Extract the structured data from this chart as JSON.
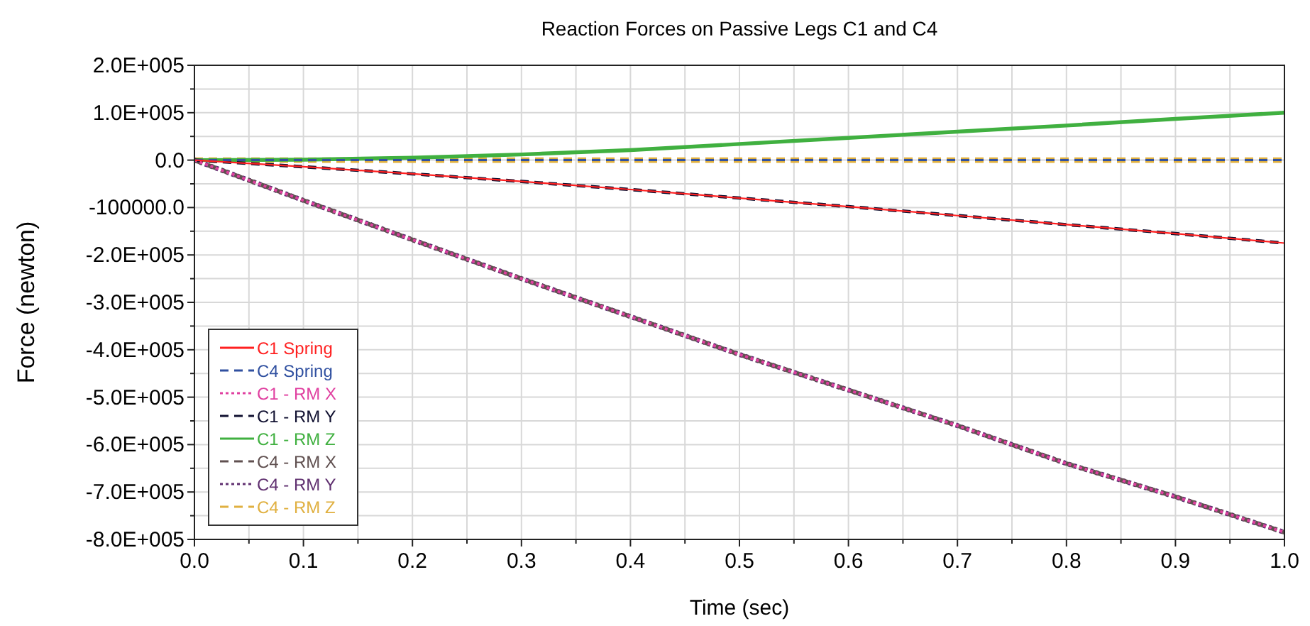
{
  "chart_data": {
    "type": "line",
    "title": "Reaction Forces on Passive Legs C1 and C4",
    "xlabel": "Time (sec)",
    "ylabel": "Force (newton)",
    "x": [
      0,
      0.1,
      0.2,
      0.3,
      0.4,
      0.5,
      0.6,
      0.7,
      0.8,
      0.9,
      1.0
    ],
    "series": [
      {
        "name": "C1 Spring",
        "color": "#ff2020",
        "line_style": "solid",
        "values": [
          0,
          -14000,
          -29000,
          -45000,
          -62000,
          -80000,
          -98000,
          -117000,
          -136000,
          -155000,
          -175000
        ]
      },
      {
        "name": "C4 Spring",
        "color": "#3050a0",
        "line_style": "dashed",
        "values": [
          0,
          0,
          0,
          0,
          0,
          0,
          0,
          0,
          0,
          0,
          0
        ]
      },
      {
        "name": "C1 - RM X",
        "color": "#e040a0",
        "line_style": "dotted",
        "values": [
          0,
          -85000,
          -168000,
          -250000,
          -330000,
          -410000,
          -485000,
          -560000,
          -640000,
          -710000,
          -785000
        ]
      },
      {
        "name": "C1 - RM Y",
        "color": "#101030",
        "line_style": "dashed",
        "values": [
          0,
          -14000,
          -29000,
          -45000,
          -62000,
          -80000,
          -98000,
          -117000,
          -136000,
          -155000,
          -175000
        ]
      },
      {
        "name": "C1 - RM Z",
        "color": "#40b040",
        "line_style": "solid",
        "values": [
          0,
          1000,
          5000,
          12000,
          21000,
          34000,
          47000,
          60000,
          73000,
          87000,
          100000
        ]
      },
      {
        "name": "C4 - RM X",
        "color": "#605050",
        "line_style": "dashed",
        "values": [
          0,
          -85000,
          -168000,
          -250000,
          -330000,
          -410000,
          -485000,
          -560000,
          -640000,
          -710000,
          -785000
        ]
      },
      {
        "name": "C4 - RM Y",
        "color": "#603070",
        "line_style": "dotted",
        "values": [
          0,
          -85000,
          -168000,
          -250000,
          -330000,
          -410000,
          -485000,
          -560000,
          -640000,
          -710000,
          -785000
        ]
      },
      {
        "name": "C4 - RM Z",
        "color": "#e0b040",
        "line_style": "dashed",
        "values": [
          0,
          0,
          0,
          0,
          0,
          0,
          0,
          0,
          0,
          0,
          0
        ]
      }
    ],
    "xlim": [
      0,
      1
    ],
    "xticks": [
      {
        "value": 0,
        "label": "0.0"
      },
      {
        "value": 0.05,
        "label": null
      },
      {
        "value": 0.1,
        "label": "0.1"
      },
      {
        "value": 0.15,
        "label": null
      },
      {
        "value": 0.2,
        "label": "0.2"
      },
      {
        "value": 0.25,
        "label": null
      },
      {
        "value": 0.3,
        "label": "0.3"
      },
      {
        "value": 0.35,
        "label": null
      },
      {
        "value": 0.4,
        "label": "0.4"
      },
      {
        "value": 0.45,
        "label": null
      },
      {
        "value": 0.5,
        "label": "0.5"
      },
      {
        "value": 0.55,
        "label": null
      },
      {
        "value": 0.6,
        "label": "0.6"
      },
      {
        "value": 0.65,
        "label": null
      },
      {
        "value": 0.7,
        "label": "0.7"
      },
      {
        "value": 0.75,
        "label": null
      },
      {
        "value": 0.8,
        "label": "0.8"
      },
      {
        "value": 0.85,
        "label": null
      },
      {
        "value": 0.9,
        "label": "0.9"
      },
      {
        "value": 0.95,
        "label": null
      },
      {
        "value": 1,
        "label": "1.0"
      }
    ],
    "ylim": [
      -800000,
      200000
    ],
    "yticks": [
      {
        "value": 200000,
        "label": "2.0E+005"
      },
      {
        "value": 150000,
        "label": null
      },
      {
        "value": 100000,
        "label": "1.0E+005"
      },
      {
        "value": 50000,
        "label": null
      },
      {
        "value": 0,
        "label": "0.0"
      },
      {
        "value": -50000,
        "label": null
      },
      {
        "value": -100000,
        "label": "-100000.0"
      },
      {
        "value": -150000,
        "label": null
      },
      {
        "value": -200000,
        "label": "-2.0E+005"
      },
      {
        "value": -250000,
        "label": null
      },
      {
        "value": -300000,
        "label": "-3.0E+005"
      },
      {
        "value": -350000,
        "label": null
      },
      {
        "value": -400000,
        "label": "-4.0E+005"
      },
      {
        "value": -450000,
        "label": null
      },
      {
        "value": -500000,
        "label": "-5.0E+005"
      },
      {
        "value": -550000,
        "label": null
      },
      {
        "value": -600000,
        "label": "-6.0E+005"
      },
      {
        "value": -650000,
        "label": null
      },
      {
        "value": -700000,
        "label": "-7.0E+005"
      },
      {
        "value": -750000,
        "label": null
      },
      {
        "value": -800000,
        "label": "-8.0E+005"
      }
    ],
    "grid": true,
    "legend": "bottom left",
    "marker": "none"
  }
}
